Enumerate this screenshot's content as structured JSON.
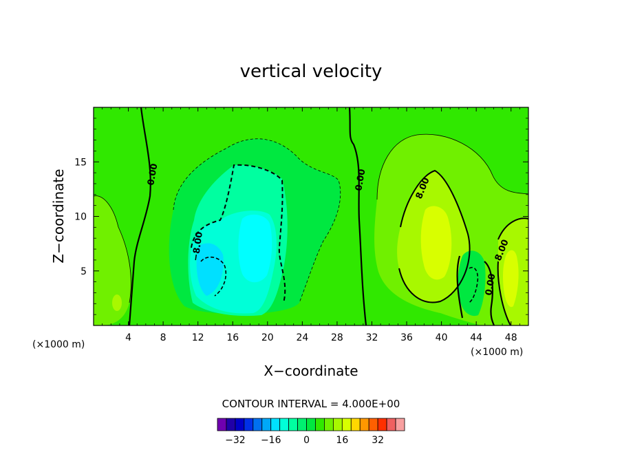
{
  "chart_data": {
    "type": "heatmap",
    "title": "vertical velocity",
    "xlabel": "X−coordinate",
    "ylabel": "Z−coordinate",
    "x_unit": "(×1000 m)",
    "z_unit": "(×1000 m)",
    "xlim": [
      0,
      50
    ],
    "ylim": [
      0,
      20
    ],
    "x_ticks": [
      "4",
      "8",
      "12",
      "16",
      "20",
      "24",
      "28",
      "32",
      "36",
      "40",
      "44",
      "48"
    ],
    "y_ticks": [
      "5",
      "10",
      "15"
    ],
    "contour_interval_text": "CONTOUR INTERVAL = 4.000E+00",
    "contour_labels": [
      "0.00",
      "0.00",
      "−8.00",
      "8.00",
      "8.00",
      "0.00"
    ],
    "colorbar": {
      "tick_labels": [
        "−32",
        "−16",
        "0",
        "16",
        "32"
      ],
      "colors": [
        "#7000b0",
        "#2000a8",
        "#0000c8",
        "#0030e8",
        "#0070f0",
        "#00a8f8",
        "#00e0ff",
        "#00ffd8",
        "#00ffa0",
        "#00f070",
        "#00e840",
        "#30e800",
        "#70f000",
        "#a8f800",
        "#d8ff00",
        "#ffd800",
        "#ff9800",
        "#ff6000",
        "#ff3000",
        "#f06060",
        "#f8a0a0"
      ]
    },
    "features": [
      {
        "name": "downdraft core",
        "x": 18.8,
        "z": 7.2,
        "w": -16
      },
      {
        "name": "downdraft shoulder",
        "x": 14.5,
        "z": 5.0,
        "w": -12
      },
      {
        "name": "updraft core",
        "x": 39.0,
        "z": 6.5,
        "w": 14
      },
      {
        "name": "updraft",
        "x": 48.0,
        "z": 4.5,
        "w": 12
      },
      {
        "name": "weak updraft",
        "x": 2.5,
        "z": 7.0,
        "w": 4
      },
      {
        "name": "weak downdraft",
        "x": 43.5,
        "z": 4.0,
        "w": -4
      }
    ]
  }
}
